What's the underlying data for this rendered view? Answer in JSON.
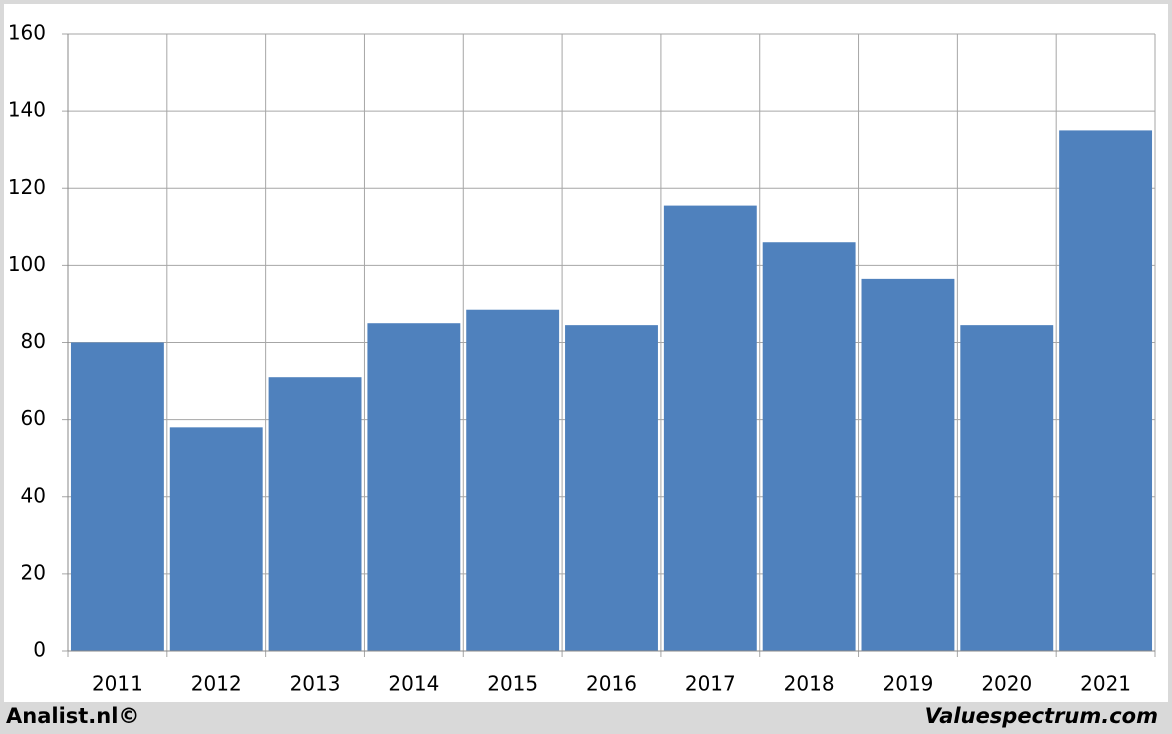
{
  "chart_data": {
    "type": "bar",
    "categories": [
      "2011",
      "2012",
      "2013",
      "2014",
      "2015",
      "2016",
      "2017",
      "2018",
      "2019",
      "2020",
      "2021"
    ],
    "values": [
      80,
      58,
      71,
      85,
      88.5,
      84.5,
      115.5,
      106,
      96.5,
      84.5,
      135
    ],
    "color": "#4f81bd",
    "ylim": [
      0,
      160
    ],
    "yticks": [
      0,
      20,
      40,
      60,
      80,
      100,
      120,
      140,
      160
    ],
    "grid": true,
    "footer_left": "Analist.nl©",
    "footer_right": "Valuespectrum.com"
  }
}
